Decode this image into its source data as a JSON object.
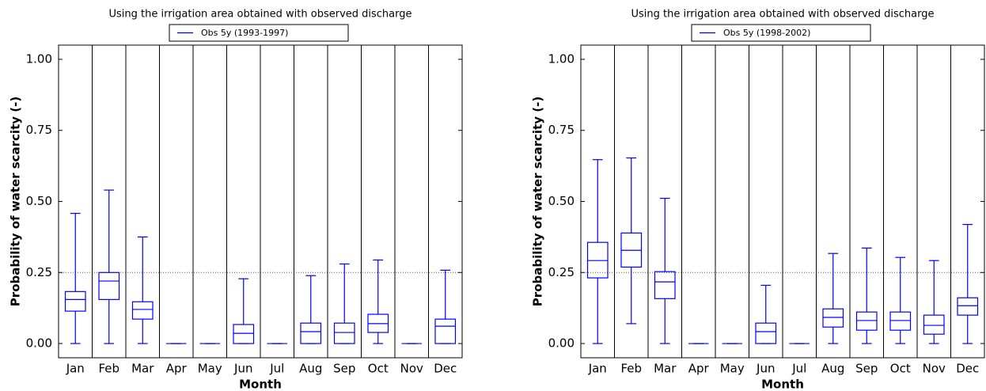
{
  "chart_data": [
    {
      "type": "box",
      "title": "Using the irrigation area obtained with observed discharge",
      "x_label": "Month",
      "y_label": "Probability of water scarcity (-)",
      "categories": [
        "Jan",
        "Feb",
        "Mar",
        "Apr",
        "May",
        "Jun",
        "Jul",
        "Aug",
        "Sep",
        "Oct",
        "Nov",
        "Dec"
      ],
      "series": [
        {
          "name": "Obs 5y (1993-1997)",
          "color": "#0000ff",
          "min": [
            0,
            0,
            0,
            0,
            0,
            0,
            0,
            0,
            0,
            0,
            0,
            0
          ],
          "q1": [
            0.114,
            0.155,
            0.086,
            0,
            0,
            0,
            0,
            0,
            0,
            0.039,
            0,
            0
          ],
          "median": [
            0.155,
            0.22,
            0.12,
            0,
            0,
            0.036,
            0,
            0.042,
            0.039,
            0.07,
            0,
            0.061
          ],
          "q3": [
            0.183,
            0.25,
            0.147,
            0,
            0,
            0.067,
            0,
            0.072,
            0.072,
            0.103,
            0,
            0.086
          ],
          "max": [
            0.458,
            0.54,
            0.375,
            0,
            0,
            0.228,
            0,
            0.239,
            0.28,
            0.294,
            0,
            0.258
          ]
        }
      ],
      "ylim": [
        -0.05,
        1.05
      ],
      "yticks": [
        {
          "value": 0,
          "label": "0.00"
        },
        {
          "value": 0.25,
          "label": "0.25"
        },
        {
          "value": 0.5,
          "label": "0.50"
        },
        {
          "value": 0.75,
          "label": "0.75"
        },
        {
          "value": 1,
          "label": "1.00"
        }
      ],
      "reference_line": 0.25,
      "legend": "top"
    },
    {
      "type": "box",
      "title": "Using the irrigation area obtained with observed discharge",
      "x_label": "Month",
      "y_label": "Probability of water scarcity (-)",
      "categories": [
        "Jan",
        "Feb",
        "Mar",
        "Apr",
        "May",
        "Jun",
        "Jul",
        "Aug",
        "Sep",
        "Oct",
        "Nov",
        "Dec"
      ],
      "series": [
        {
          "name": "Obs 5y (1998-2002)",
          "color": "#0000ff",
          "min": [
            0,
            0.07,
            0,
            0,
            0,
            0,
            0,
            0,
            0,
            0,
            0,
            0
          ],
          "q1": [
            0.231,
            0.269,
            0.158,
            0,
            0,
            0,
            0,
            0.058,
            0.047,
            0.047,
            0.033,
            0.1
          ],
          "median": [
            0.292,
            0.328,
            0.217,
            0,
            0,
            0.042,
            0,
            0.092,
            0.081,
            0.081,
            0.064,
            0.133
          ],
          "q3": [
            0.356,
            0.389,
            0.253,
            0,
            0,
            0.072,
            0,
            0.122,
            0.111,
            0.111,
            0.1,
            0.161
          ],
          "max": [
            0.647,
            0.653,
            0.511,
            0,
            0,
            0.205,
            0,
            0.317,
            0.336,
            0.303,
            0.292,
            0.419
          ]
        }
      ],
      "ylim": [
        -0.05,
        1.05
      ],
      "yticks": [
        {
          "value": 0,
          "label": "0.00"
        },
        {
          "value": 0.25,
          "label": "0.25"
        },
        {
          "value": 0.5,
          "label": "0.50"
        },
        {
          "value": 0.75,
          "label": "0.75"
        },
        {
          "value": 1,
          "label": "1.00"
        }
      ],
      "reference_line": 0.25,
      "legend": "top"
    }
  ]
}
